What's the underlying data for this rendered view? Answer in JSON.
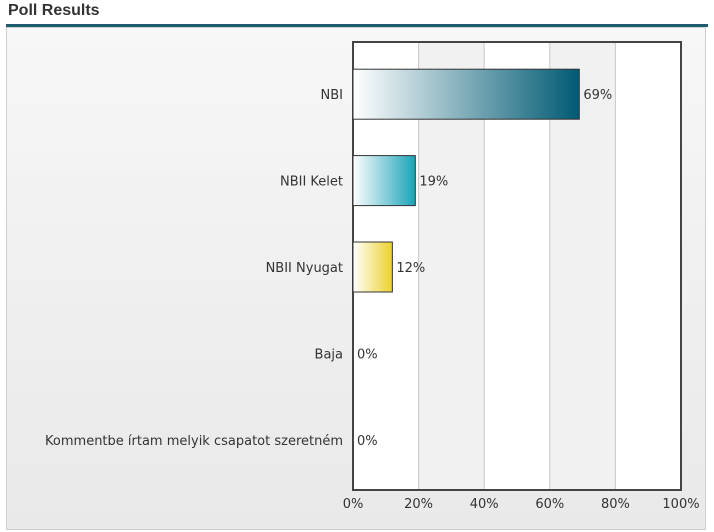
{
  "header": {
    "title": "Poll Results"
  },
  "colors": {
    "accent": "#1e5a70",
    "bar_nbi": "#005a73",
    "bar_nbii_kelet": "#1aa3b8",
    "bar_nbii_nyugat": "#ecd12a"
  },
  "chart_data": {
    "type": "bar",
    "orientation": "horizontal",
    "title": "",
    "xlabel": "",
    "ylabel": "",
    "xlim": [
      0,
      100
    ],
    "x_ticks": [
      0,
      20,
      40,
      60,
      80,
      100
    ],
    "x_tick_labels": [
      "0%",
      "20%",
      "40%",
      "60%",
      "80%",
      "100%"
    ],
    "grid": true,
    "categories": [
      "NBI",
      "NBII Kelet",
      "NBII Nyugat",
      "Baja",
      "Kommentbe írtam melyik csapatot szeretném"
    ],
    "values": [
      69,
      19,
      12,
      0,
      0
    ],
    "value_labels": [
      "69%",
      "19%",
      "12%",
      "0%",
      "0%"
    ]
  }
}
